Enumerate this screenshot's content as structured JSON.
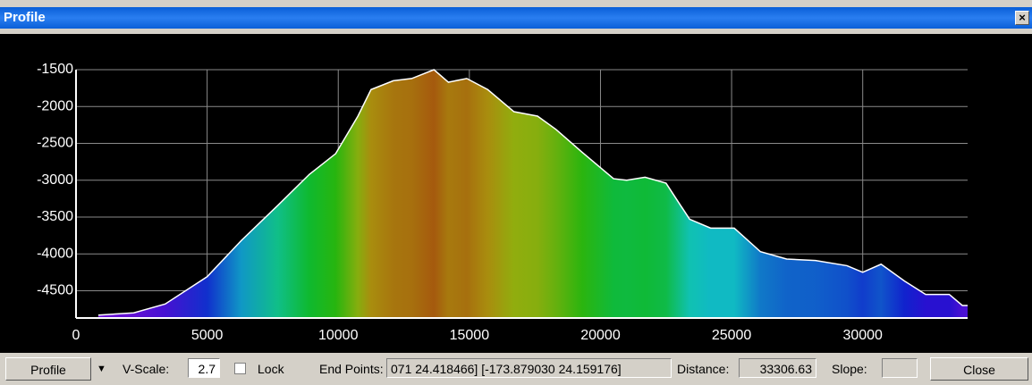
{
  "window": {
    "title": "Profile",
    "close": "×"
  },
  "chart_data": {
    "type": "area",
    "x": [
      850,
      2200,
      3400,
      5000,
      6300,
      7700,
      8900,
      9900,
      10750,
      11250,
      12100,
      12800,
      13650,
      14200,
      14900,
      15700,
      16700,
      17600,
      18300,
      19300,
      20500,
      21000,
      21700,
      22500,
      23400,
      24200,
      25100,
      26100,
      27100,
      28200,
      29400,
      30000,
      30700,
      31600,
      32400,
      33300,
      33800,
      34000
    ],
    "values": [
      -4830,
      -4800,
      -4680,
      -4310,
      -3820,
      -3340,
      -2920,
      -2640,
      -2130,
      -1770,
      -1650,
      -1620,
      -1500,
      -1670,
      -1620,
      -1770,
      -2070,
      -2130,
      -2310,
      -2620,
      -2980,
      -3000,
      -2960,
      -3040,
      -3530,
      -3650,
      -3650,
      -3970,
      -4070,
      -4090,
      -4160,
      -4250,
      -4140,
      -4370,
      -4550,
      -4550,
      -4700,
      -4700
    ],
    "xlim": [
      0,
      34000
    ],
    "ylim": [
      -4870,
      -1500
    ],
    "xticks": [
      0,
      5000,
      10000,
      15000,
      20000,
      25000,
      30000
    ],
    "yticks": [
      -1500,
      -2000,
      -2500,
      -3000,
      -3500,
      -4000,
      -4500
    ],
    "grid": true
  },
  "toolbar": {
    "mode": "Profile",
    "vscale_label": "V-Scale:",
    "vscale": "2.7",
    "lock": "Lock",
    "endpoints_label": "End Points:",
    "endpoints": "071 24.418466] [-173.879030 24.159176]",
    "distance_label": "Distance:",
    "distance": "33306.63",
    "slope_label": "Slope:",
    "close": "Close"
  }
}
